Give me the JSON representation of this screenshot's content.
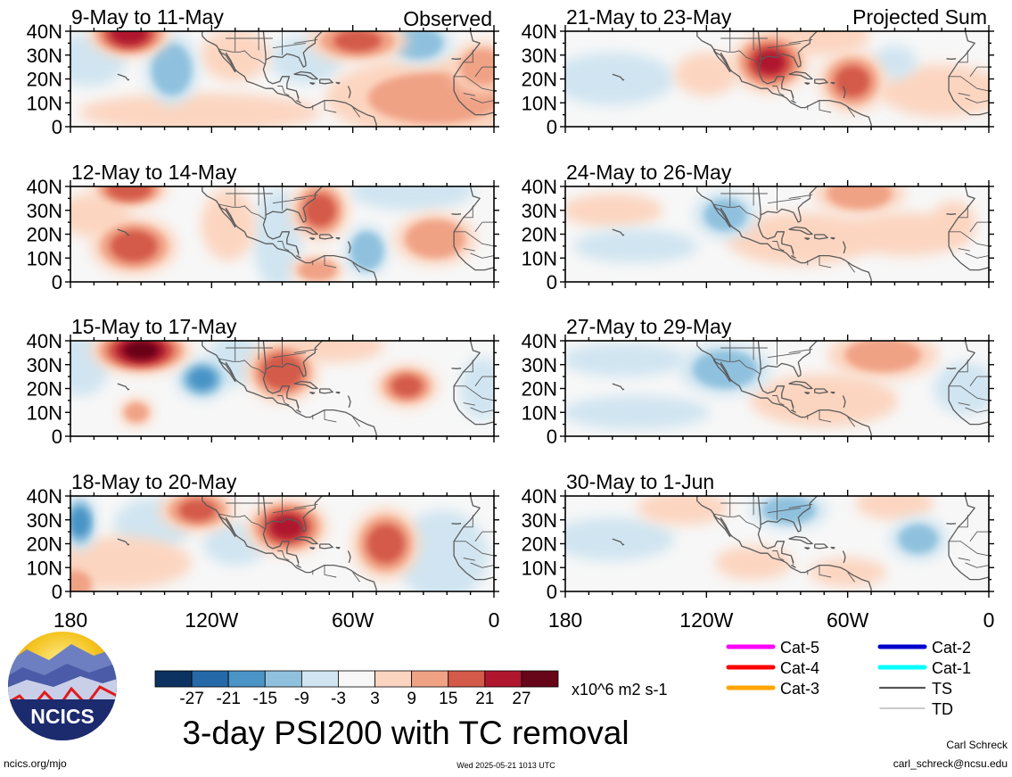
{
  "figure": {
    "title": "3-day PSI200 with TC removal",
    "left_header": "Observed",
    "right_header": "Projected Sum",
    "site_url": "ncics.org/mjo",
    "timestamp": "Wed 2025-05-21 1013 UTC",
    "author_name": "Carl Schreck",
    "author_email": "carl_schreck@ncsu.edu",
    "logo_text": "NCICS"
  },
  "axes": {
    "lat_labels": [
      "40N",
      "30N",
      "20N",
      "10N",
      "0"
    ],
    "lat_values": [
      40,
      30,
      20,
      10,
      0
    ],
    "lon_labels": [
      "180",
      "120W",
      "60W",
      "0"
    ],
    "lon_values": [
      -180,
      -120,
      -60,
      0
    ]
  },
  "colorbar": {
    "units": "x10^6 m2 s-1",
    "labels": [
      "-27",
      "-21",
      "-15",
      "-9",
      "-3",
      "3",
      "9",
      "15",
      "21",
      "27"
    ],
    "colors": [
      "#0b3260",
      "#2569a8",
      "#4a94c6",
      "#8fc1de",
      "#d0e5f1",
      "#f7f7f7",
      "#fcd5c0",
      "#f0a285",
      "#d45a49",
      "#b0162d",
      "#670519"
    ]
  },
  "legend": {
    "items": [
      {
        "label": "Cat-5",
        "color": "#ff00ff"
      },
      {
        "label": "Cat-4",
        "color": "#ff0000"
      },
      {
        "label": "Cat-3",
        "color": "#ffa500"
      },
      {
        "label": "Cat-2",
        "color": "#0000cc"
      },
      {
        "label": "Cat-1",
        "color": "#00ffff"
      },
      {
        "label": "TS",
        "color": "#555555"
      },
      {
        "label": "TD",
        "color": "#aaaaaa"
      }
    ]
  },
  "panels": [
    {
      "title": "9-May to 11-May",
      "column": "observed",
      "blobs": [
        {
          "lon": -155,
          "lat": 39,
          "rx": 16,
          "ry": 9,
          "v": 24
        },
        {
          "lon": -137,
          "lat": 24,
          "rx": 10,
          "ry": 14,
          "v": -14
        },
        {
          "lon": -172,
          "lat": 28,
          "rx": 14,
          "ry": 10,
          "v": -5
        },
        {
          "lon": -110,
          "lat": 30,
          "rx": 13,
          "ry": 10,
          "v": 8
        },
        {
          "lon": -58,
          "lat": 36,
          "rx": 20,
          "ry": 8,
          "v": 15
        },
        {
          "lon": -32,
          "lat": 35,
          "rx": 13,
          "ry": 8,
          "v": -13
        },
        {
          "lon": -80,
          "lat": 28,
          "rx": 14,
          "ry": 9,
          "v": -6
        },
        {
          "lon": -25,
          "lat": 12,
          "rx": 45,
          "ry": 16,
          "v": 9
        },
        {
          "lon": -5,
          "lat": 25,
          "rx": 12,
          "ry": 10,
          "v": 12
        },
        {
          "lon": -125,
          "lat": 6,
          "rx": 50,
          "ry": 7,
          "v": 4
        }
      ]
    },
    {
      "title": "12-May to 14-May",
      "column": "observed",
      "blobs": [
        {
          "lon": -155,
          "lat": 39,
          "rx": 15,
          "ry": 7,
          "v": 20
        },
        {
          "lon": -153,
          "lat": 15,
          "rx": 17,
          "ry": 11,
          "v": 18
        },
        {
          "lon": -113,
          "lat": 24,
          "rx": 10,
          "ry": 14,
          "v": 8
        },
        {
          "lon": -92,
          "lat": 18,
          "rx": 9,
          "ry": 20,
          "v": -6
        },
        {
          "lon": -74,
          "lat": 30,
          "rx": 11,
          "ry": 12,
          "v": 17
        },
        {
          "lon": -54,
          "lat": 13,
          "rx": 8,
          "ry": 10,
          "v": -14
        },
        {
          "lon": -25,
          "lat": 18,
          "rx": 16,
          "ry": 10,
          "v": 14
        },
        {
          "lon": -35,
          "lat": 38,
          "rx": 25,
          "ry": 7,
          "v": -5
        },
        {
          "lon": -170,
          "lat": 28,
          "rx": 14,
          "ry": 8,
          "v": 5
        },
        {
          "lon": -75,
          "lat": 5,
          "rx": 10,
          "ry": 5,
          "v": 13
        }
      ]
    },
    {
      "title": "15-May to 17-May",
      "column": "observed",
      "blobs": [
        {
          "lon": -150,
          "lat": 36,
          "rx": 20,
          "ry": 9,
          "v": 28
        },
        {
          "lon": -124,
          "lat": 24,
          "rx": 10,
          "ry": 8,
          "v": -15
        },
        {
          "lon": -90,
          "lat": 27,
          "rx": 14,
          "ry": 12,
          "v": 20
        },
        {
          "lon": -37,
          "lat": 21,
          "rx": 12,
          "ry": 8,
          "v": 15
        },
        {
          "lon": -175,
          "lat": 30,
          "rx": 10,
          "ry": 12,
          "v": -6
        },
        {
          "lon": -152,
          "lat": 10,
          "rx": 6,
          "ry": 5,
          "v": 9
        },
        {
          "lon": -110,
          "lat": 32,
          "rx": 10,
          "ry": 10,
          "v": -4
        },
        {
          "lon": -68,
          "lat": 38,
          "rx": 20,
          "ry": 6,
          "v": 5
        },
        {
          "lon": -5,
          "lat": 20,
          "rx": 8,
          "ry": 12,
          "v": -8
        }
      ]
    },
    {
      "title": "18-May to 20-May",
      "column": "observed",
      "blobs": [
        {
          "lon": -176,
          "lat": 29,
          "rx": 6,
          "ry": 11,
          "v": -16
        },
        {
          "lon": -126,
          "lat": 34,
          "rx": 15,
          "ry": 8,
          "v": 15
        },
        {
          "lon": -88,
          "lat": 27,
          "rx": 16,
          "ry": 11,
          "v": 22
        },
        {
          "lon": -46,
          "lat": 20,
          "rx": 13,
          "ry": 14,
          "v": 18
        },
        {
          "lon": -110,
          "lat": 20,
          "rx": 12,
          "ry": 8,
          "v": -5
        },
        {
          "lon": -22,
          "lat": 15,
          "rx": 18,
          "ry": 18,
          "v": -4
        },
        {
          "lon": -160,
          "lat": 12,
          "rx": 30,
          "ry": 10,
          "v": 5
        },
        {
          "lon": -178,
          "lat": 3,
          "rx": 8,
          "ry": 7,
          "v": 13
        },
        {
          "lon": -145,
          "lat": 28,
          "rx": 15,
          "ry": 10,
          "v": -4
        }
      ]
    },
    {
      "title": "21-May to 23-May",
      "column": "projected",
      "blobs": [
        {
          "lon": -93,
          "lat": 27,
          "rx": 15,
          "ry": 12,
          "v": 21
        },
        {
          "lon": -58,
          "lat": 19,
          "rx": 13,
          "ry": 12,
          "v": 16
        },
        {
          "lon": -160,
          "lat": 20,
          "rx": 25,
          "ry": 10,
          "v": -5
        },
        {
          "lon": -72,
          "lat": 38,
          "rx": 20,
          "ry": 7,
          "v": 5
        },
        {
          "lon": -40,
          "lat": 27,
          "rx": 8,
          "ry": 6,
          "v": -6
        },
        {
          "lon": -120,
          "lat": 22,
          "rx": 12,
          "ry": 8,
          "v": 6
        },
        {
          "lon": -20,
          "lat": 15,
          "rx": 25,
          "ry": 10,
          "v": 4
        }
      ]
    },
    {
      "title": "24-May to 26-May",
      "column": "projected",
      "blobs": [
        {
          "lon": -112,
          "lat": 28,
          "rx": 12,
          "ry": 9,
          "v": -10
        },
        {
          "lon": -55,
          "lat": 37,
          "rx": 18,
          "ry": 8,
          "v": 13
        },
        {
          "lon": -160,
          "lat": 30,
          "rx": 20,
          "ry": 6,
          "v": 4
        },
        {
          "lon": -80,
          "lat": 18,
          "rx": 30,
          "ry": 10,
          "v": 5
        },
        {
          "lon": -35,
          "lat": 20,
          "rx": 25,
          "ry": 8,
          "v": 5
        },
        {
          "lon": -150,
          "lat": 15,
          "rx": 25,
          "ry": 6,
          "v": -4
        },
        {
          "lon": -15,
          "lat": 25,
          "rx": 8,
          "ry": 8,
          "v": 8
        }
      ]
    },
    {
      "title": "27-May to 29-May",
      "column": "projected",
      "blobs": [
        {
          "lon": -112,
          "lat": 28,
          "rx": 18,
          "ry": 10,
          "v": -13
        },
        {
          "lon": -45,
          "lat": 34,
          "rx": 22,
          "ry": 9,
          "v": 12
        },
        {
          "lon": -155,
          "lat": 32,
          "rx": 25,
          "ry": 6,
          "v": -5
        },
        {
          "lon": -70,
          "lat": 15,
          "rx": 30,
          "ry": 10,
          "v": 5
        },
        {
          "lon": -150,
          "lat": 10,
          "rx": 30,
          "ry": 6,
          "v": -3
        },
        {
          "lon": -10,
          "lat": 20,
          "rx": 12,
          "ry": 10,
          "v": -4
        }
      ]
    },
    {
      "title": "30-May to 1-Jun",
      "column": "projected",
      "blobs": [
        {
          "lon": -85,
          "lat": 34,
          "rx": 15,
          "ry": 7,
          "v": -12
        },
        {
          "lon": -30,
          "lat": 22,
          "rx": 11,
          "ry": 8,
          "v": -10
        },
        {
          "lon": -40,
          "lat": 37,
          "rx": 15,
          "ry": 6,
          "v": 8
        },
        {
          "lon": -130,
          "lat": 35,
          "rx": 18,
          "ry": 6,
          "v": 5
        },
        {
          "lon": -160,
          "lat": 22,
          "rx": 25,
          "ry": 8,
          "v": -4
        },
        {
          "lon": -100,
          "lat": 12,
          "rx": 15,
          "ry": 6,
          "v": 4
        },
        {
          "lon": -60,
          "lat": 8,
          "rx": 15,
          "ry": 5,
          "v": 4
        }
      ]
    }
  ]
}
